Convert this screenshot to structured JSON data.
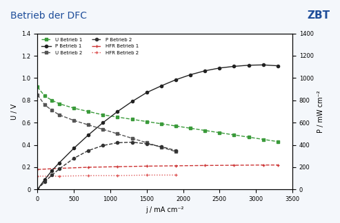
{
  "chart_data": {
    "type": "line",
    "title": "Betrieb der DFC",
    "subtitle": "ZBT",
    "x_label": "j / mA cm⁻²",
    "y_label": "U / V",
    "y2_label": "P / mW cm⁻²",
    "xlim": [
      0,
      3500
    ],
    "xticks": [
      0,
      500,
      1000,
      1500,
      2000,
      2500,
      3000,
      3500
    ],
    "ylim": [
      0,
      1.4
    ],
    "yticks": [
      0,
      0.2,
      0.4,
      0.6,
      0.8,
      1.0,
      1.2,
      1.4
    ],
    "y2lim": [
      0,
      1400
    ],
    "y2ticks": [
      0,
      200,
      400,
      600,
      800,
      1000,
      1200,
      1400
    ],
    "grid": false,
    "legend": "upper left",
    "series": [
      {
        "name": "U Betrieb 1",
        "color": "#3a9a3a",
        "marker": "square",
        "line_style": "dashed",
        "x": [
          0,
          100,
          200,
          300,
          500,
          700,
          900,
          1100,
          1300,
          1500,
          1700,
          1900,
          2100,
          2300,
          2500,
          2700,
          2900,
          3100,
          3300
        ],
        "values": [
          0.92,
          0.84,
          0.8,
          0.77,
          0.73,
          0.7,
          0.67,
          0.65,
          0.63,
          0.61,
          0.59,
          0.57,
          0.55,
          0.53,
          0.51,
          0.49,
          0.47,
          0.45,
          0.43
        ]
      },
      {
        "name": "P Betrieb 1",
        "color": "#222222",
        "marker": "circle",
        "line_style": "solid",
        "axis": "y2",
        "x": [
          0,
          100,
          200,
          300,
          500,
          700,
          900,
          1100,
          1300,
          1500,
          1700,
          1900,
          2100,
          2300,
          2500,
          2700,
          2900,
          3100,
          3300
        ],
        "values": [
          0,
          90,
          170,
          240,
          370,
          490,
          600,
          700,
          790,
          870,
          930,
          985,
          1030,
          1065,
          1090,
          1105,
          1115,
          1118,
          1110
        ]
      },
      {
        "name": "U Betrieb 2",
        "color": "#555555",
        "marker": "square",
        "line_style": "dashed",
        "x": [
          0,
          100,
          200,
          300,
          500,
          700,
          900,
          1100,
          1300,
          1500,
          1700,
          1900
        ],
        "values": [
          0.85,
          0.76,
          0.71,
          0.67,
          0.62,
          0.58,
          0.54,
          0.5,
          0.46,
          0.42,
          0.38,
          0.34
        ]
      },
      {
        "name": "P Betrieb 2",
        "color": "#333333",
        "marker": "circle",
        "line_style": "dashed",
        "axis": "y2",
        "x": [
          0,
          100,
          200,
          300,
          500,
          700,
          900,
          1100,
          1300,
          1500,
          1700,
          1900
        ],
        "values": [
          0,
          70,
          130,
          185,
          280,
          350,
          395,
          420,
          425,
          410,
          385,
          350
        ]
      },
      {
        "name": "HFR Betrieb 1",
        "color": "#cc3333",
        "marker": "plus",
        "line_style": "dashed",
        "x": [
          0,
          300,
          700,
          1100,
          1500,
          1900,
          2300,
          2700,
          3100,
          3300
        ],
        "values": [
          0.18,
          0.19,
          0.2,
          0.205,
          0.21,
          0.213,
          0.216,
          0.218,
          0.22,
          0.22
        ]
      },
      {
        "name": "HFR Betrieb 2",
        "color": "#dd5555",
        "marker": "plus",
        "line_style": "dotted",
        "x": [
          0,
          300,
          700,
          1100,
          1500,
          1900
        ],
        "values": [
          0.12,
          0.12,
          0.125,
          0.125,
          0.13,
          0.13
        ]
      }
    ]
  }
}
